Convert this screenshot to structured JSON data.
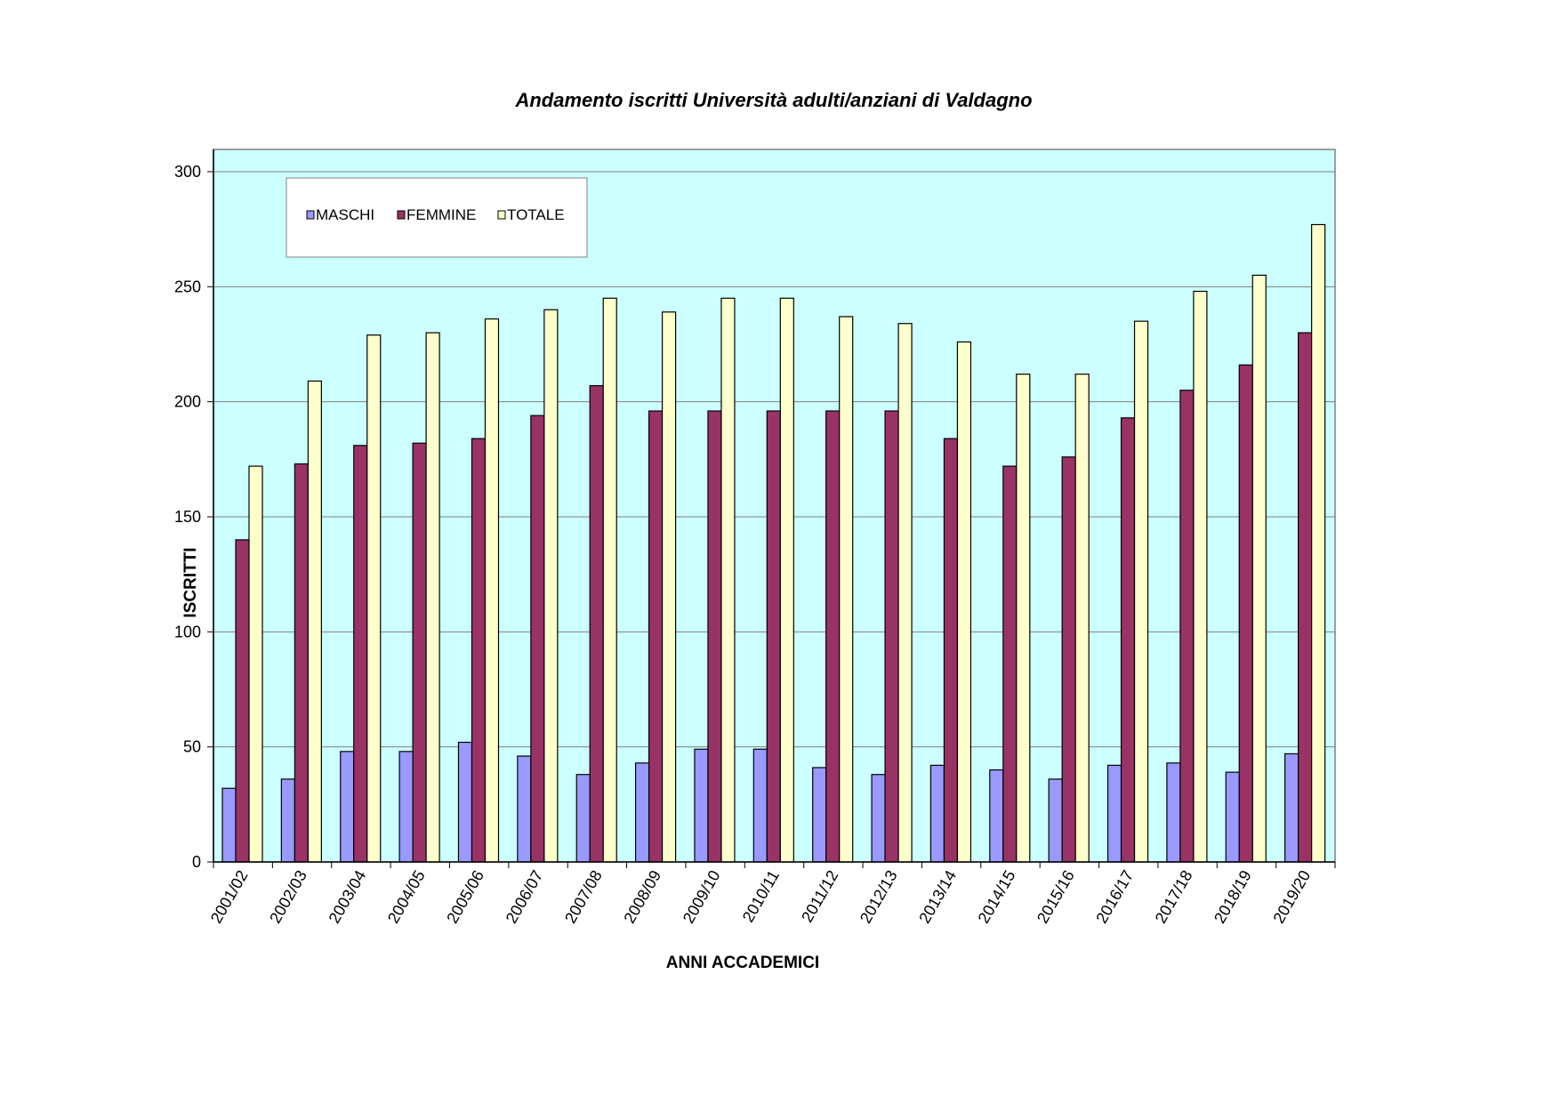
{
  "chart_data": {
    "type": "bar",
    "title": "Andamento iscritti Università adulti/anziani di Valdagno",
    "xlabel": "ANNI ACCADEMICI",
    "ylabel": "ISCRITTI",
    "ylim": [
      0,
      300
    ],
    "yticks": [
      0,
      50,
      100,
      150,
      200,
      250,
      300
    ],
    "grid": true,
    "legend_position": "top-left",
    "plot_background": "#ccffff",
    "categories": [
      "2001/02",
      "2002/03",
      "2003/04",
      "2004/05",
      "2005/06",
      "2006/07",
      "2007/08",
      "2008/09",
      "2009/10",
      "2010/11",
      "2011/12",
      "2012/13",
      "2013/14",
      "2014/15",
      "2015/16",
      "2016/17",
      "2017/18",
      "2018/19",
      "2019/20"
    ],
    "series": [
      {
        "name": "MASCHI",
        "color": "#9999ff",
        "values": [
          32,
          36,
          48,
          48,
          52,
          46,
          38,
          43,
          49,
          49,
          41,
          38,
          42,
          40,
          36,
          42,
          43,
          39,
          47
        ]
      },
      {
        "name": "FEMMINE",
        "color": "#993366",
        "values": [
          140,
          173,
          181,
          182,
          184,
          194,
          207,
          196,
          196,
          196,
          196,
          196,
          184,
          172,
          176,
          193,
          205,
          216,
          230
        ]
      },
      {
        "name": "TOTALE",
        "color": "#ffffcc",
        "values": [
          172,
          209,
          229,
          230,
          236,
          240,
          245,
          239,
          245,
          245,
          237,
          234,
          226,
          212,
          212,
          235,
          248,
          255,
          277
        ]
      }
    ]
  }
}
